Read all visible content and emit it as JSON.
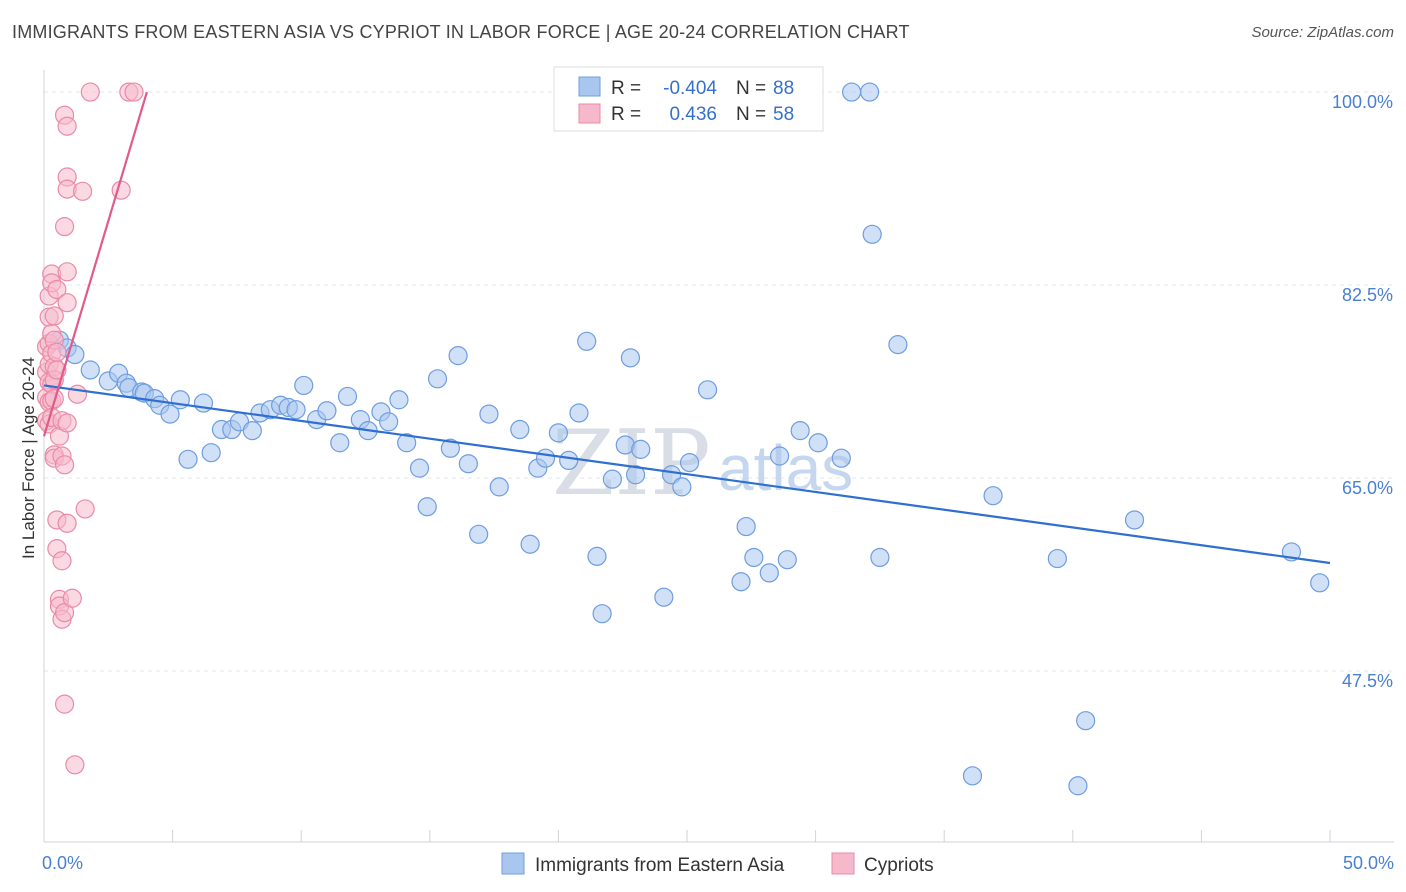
{
  "title": "IMMIGRANTS FROM EASTERN ASIA VS CYPRIOT IN LABOR FORCE | AGE 20-24 CORRELATION CHART",
  "source": "Source: ZipAtlas.com",
  "watermark": {
    "zip": "ZIP",
    "atlas": "atlas"
  },
  "legend_top": [
    {
      "r_label": "R =",
      "r_value": "-0.404",
      "n_label": "N =",
      "n_value": "88",
      "color": "#a9c6ee",
      "stroke": "#6e9de0"
    },
    {
      "r_label": "R =",
      "r_value": "0.436",
      "n_label": "N =",
      "n_value": "58",
      "color": "#f6b9cc",
      "stroke": "#ea8aa8"
    }
  ],
  "legend_bottom": [
    {
      "label": "Immigrants from Eastern Asia",
      "color": "#a9c6ee",
      "stroke": "#6e9de0"
    },
    {
      "label": "Cypriots",
      "color": "#f6b9cc",
      "stroke": "#ea8aa8"
    }
  ],
  "chart_data": {
    "type": "scatter",
    "title": "IMMIGRANTS FROM EASTERN ASIA VS CYPRIOT IN LABOR FORCE | AGE 20-24 CORRELATION CHART",
    "xlabel": "",
    "ylabel": "In Labor Force | Age 20-24",
    "xlim": [
      0,
      50
    ],
    "ylim": [
      32,
      102
    ],
    "x_tick_labels": [
      "0.0%",
      "50.0%"
    ],
    "x_tick_values": [
      0,
      50
    ],
    "y_tick_labels": [
      "100.0%",
      "82.5%",
      "65.0%",
      "47.5%"
    ],
    "y_tick_values": [
      100,
      82.5,
      65,
      47.5
    ],
    "series": [
      {
        "name": "Immigrants from Eastern Asia",
        "color": "#a9c6ee",
        "stroke": "#6e9de0",
        "trend": {
          "x": [
            0,
            50
          ],
          "y": [
            73.4,
            57.3
          ],
          "color": "#2e6fd0"
        },
        "points": [
          [
            0.6,
            77.5
          ],
          [
            0.9,
            76.8
          ],
          [
            1.2,
            76.2
          ],
          [
            1.8,
            74.8
          ],
          [
            2.5,
            73.8
          ],
          [
            2.9,
            74.5
          ],
          [
            3.2,
            73.6
          ],
          [
            3.3,
            73.2
          ],
          [
            3.8,
            72.8
          ],
          [
            3.9,
            72.7
          ],
          [
            4.3,
            72.2
          ],
          [
            4.5,
            71.6
          ],
          [
            4.9,
            70.8
          ],
          [
            5.3,
            72.1
          ],
          [
            5.6,
            66.7
          ],
          [
            6.2,
            71.8
          ],
          [
            6.5,
            67.3
          ],
          [
            6.9,
            69.4
          ],
          [
            7.3,
            69.4
          ],
          [
            7.6,
            70.1
          ],
          [
            8.1,
            69.3
          ],
          [
            8.4,
            70.9
          ],
          [
            8.8,
            71.2
          ],
          [
            9.2,
            71.6
          ],
          [
            9.5,
            71.4
          ],
          [
            9.8,
            71.2
          ],
          [
            10.1,
            73.4
          ],
          [
            10.6,
            70.3
          ],
          [
            11.0,
            71.1
          ],
          [
            11.5,
            68.2
          ],
          [
            11.8,
            72.4
          ],
          [
            12.3,
            70.3
          ],
          [
            12.6,
            69.3
          ],
          [
            13.1,
            71.0
          ],
          [
            13.4,
            70.1
          ],
          [
            13.8,
            72.1
          ],
          [
            14.1,
            68.2
          ],
          [
            14.6,
            65.9
          ],
          [
            14.9,
            62.4
          ],
          [
            15.3,
            74.0
          ],
          [
            15.8,
            67.7
          ],
          [
            16.1,
            76.1
          ],
          [
            16.5,
            66.3
          ],
          [
            16.9,
            59.9
          ],
          [
            17.3,
            70.8
          ],
          [
            17.7,
            64.2
          ],
          [
            18.5,
            69.4
          ],
          [
            18.9,
            59.0
          ],
          [
            19.2,
            65.9
          ],
          [
            19.5,
            66.8
          ],
          [
            20.0,
            69.1
          ],
          [
            20.4,
            66.6
          ],
          [
            20.8,
            70.9
          ],
          [
            21.1,
            77.4
          ],
          [
            21.5,
            57.9
          ],
          [
            21.7,
            52.7
          ],
          [
            22.1,
            64.9
          ],
          [
            22.6,
            68.0
          ],
          [
            22.8,
            75.9
          ],
          [
            23.0,
            65.3
          ],
          [
            23.2,
            67.6
          ],
          [
            24.1,
            54.2
          ],
          [
            24.4,
            65.3
          ],
          [
            24.8,
            64.2
          ],
          [
            25.1,
            66.4
          ],
          [
            25.8,
            73.0
          ],
          [
            27.1,
            55.6
          ],
          [
            27.3,
            60.6
          ],
          [
            27.6,
            57.8
          ],
          [
            28.2,
            56.4
          ],
          [
            28.6,
            67.0
          ],
          [
            28.9,
            57.6
          ],
          [
            29.4,
            69.3
          ],
          [
            30.1,
            68.2
          ],
          [
            31.0,
            66.8
          ],
          [
            31.4,
            100.0
          ],
          [
            32.1,
            100.0
          ],
          [
            32.2,
            87.1
          ],
          [
            32.5,
            57.8
          ],
          [
            33.2,
            77.1
          ],
          [
            36.1,
            38.0
          ],
          [
            36.9,
            63.4
          ],
          [
            39.4,
            57.7
          ],
          [
            40.2,
            37.1
          ],
          [
            40.5,
            43.0
          ],
          [
            42.4,
            61.2
          ],
          [
            48.5,
            58.3
          ],
          [
            49.6,
            55.5
          ]
        ]
      },
      {
        "name": "Cypriots",
        "color": "#f6b9cc",
        "stroke": "#ea8aa8",
        "trend": {
          "x": [
            0,
            4.0
          ],
          "y": [
            68.8,
            100.0
          ],
          "color": "#e05a8a"
        },
        "points": [
          [
            0.1,
            76.9
          ],
          [
            0.1,
            74.6
          ],
          [
            0.1,
            72.3
          ],
          [
            0.1,
            70.2
          ],
          [
            0.2,
            81.5
          ],
          [
            0.2,
            79.6
          ],
          [
            0.2,
            77.2
          ],
          [
            0.2,
            75.3
          ],
          [
            0.2,
            73.7
          ],
          [
            0.2,
            71.9
          ],
          [
            0.2,
            69.9
          ],
          [
            0.3,
            83.5
          ],
          [
            0.3,
            82.7
          ],
          [
            0.3,
            78.1
          ],
          [
            0.3,
            76.3
          ],
          [
            0.3,
            73.5
          ],
          [
            0.3,
            72.0
          ],
          [
            0.3,
            70.5
          ],
          [
            0.4,
            79.7
          ],
          [
            0.4,
            77.5
          ],
          [
            0.4,
            75.1
          ],
          [
            0.4,
            73.9
          ],
          [
            0.4,
            72.2
          ],
          [
            0.4,
            67.1
          ],
          [
            0.4,
            66.8
          ],
          [
            0.5,
            82.1
          ],
          [
            0.5,
            76.4
          ],
          [
            0.5,
            74.8
          ],
          [
            0.5,
            61.2
          ],
          [
            0.5,
            58.6
          ],
          [
            0.6,
            54.0
          ],
          [
            0.6,
            53.4
          ],
          [
            0.6,
            68.8
          ],
          [
            0.7,
            70.2
          ],
          [
            0.7,
            67.0
          ],
          [
            0.7,
            57.5
          ],
          [
            0.7,
            52.2
          ],
          [
            0.8,
            87.8
          ],
          [
            0.8,
            97.9
          ],
          [
            0.8,
            44.5
          ],
          [
            0.8,
            66.2
          ],
          [
            0.8,
            52.8
          ],
          [
            0.9,
            92.3
          ],
          [
            0.9,
            91.2
          ],
          [
            0.9,
            96.9
          ],
          [
            0.9,
            80.9
          ],
          [
            0.9,
            83.7
          ],
          [
            0.9,
            70.0
          ],
          [
            0.9,
            60.9
          ],
          [
            1.1,
            54.1
          ],
          [
            1.2,
            39.0
          ],
          [
            1.3,
            72.6
          ],
          [
            1.5,
            91.0
          ],
          [
            1.6,
            62.2
          ],
          [
            1.8,
            100.0
          ],
          [
            3.0,
            91.1
          ],
          [
            3.3,
            100.0
          ],
          [
            3.5,
            100.0
          ]
        ]
      }
    ]
  }
}
